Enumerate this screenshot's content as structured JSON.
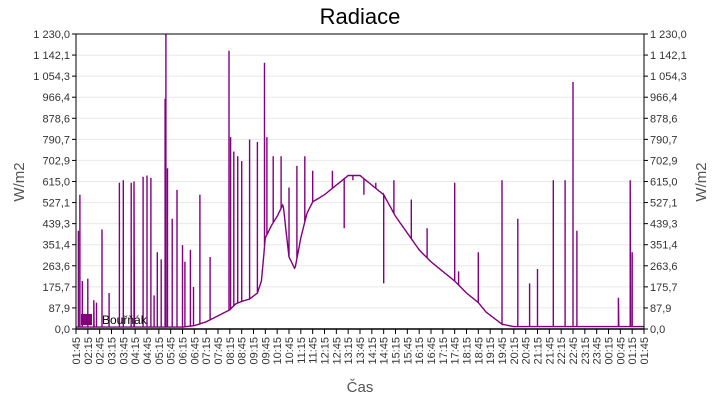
{
  "chart_data": {
    "type": "line",
    "title": "Radiace",
    "xlabel": "Čas",
    "ylabel": "W/m2",
    "ylabel_right": "W/m2",
    "ylim": [
      0,
      1230
    ],
    "yticks": [
      "0,0",
      "87,9",
      "175,7",
      "263,6",
      "351,4",
      "439,3",
      "527,1",
      "615,0",
      "702,9",
      "790,7",
      "878,6",
      "966,4",
      "1 054,3",
      "1 142,1",
      "1 230,0"
    ],
    "xticks": [
      "01:45",
      "02:15",
      "02:45",
      "03:15",
      "03:45",
      "04:15",
      "04:45",
      "05:15",
      "05:45",
      "06:15",
      "06:45",
      "07:15",
      "07:45",
      "08:15",
      "08:45",
      "09:15",
      "09:45",
      "10:15",
      "10:45",
      "11:15",
      "11:45",
      "12:15",
      "12:45",
      "13:15",
      "13:45",
      "14:15",
      "14:45",
      "15:15",
      "15:45",
      "16:15",
      "16:45",
      "17:15",
      "17:45",
      "18:15",
      "18:45",
      "19:15",
      "19:45",
      "20:15",
      "20:45",
      "21:15",
      "21:45",
      "22:15",
      "22:45",
      "23:15",
      "23:45",
      "00:15",
      "00:45",
      "01:15",
      "01:45"
    ],
    "grid": true,
    "legend": {
      "position": "inside-bottom-left",
      "entries": [
        "Bouřňák"
      ]
    },
    "series": [
      {
        "name": "Bouřňák",
        "color": "#800080",
        "x_unit": "minutes since 01:45",
        "baseline": [
          [
            0,
            8
          ],
          [
            270,
            8
          ],
          [
            300,
            14
          ],
          [
            330,
            30
          ],
          [
            360,
            55
          ],
          [
            390,
            80
          ],
          [
            405,
            105
          ],
          [
            420,
            115
          ],
          [
            440,
            125
          ],
          [
            460,
            150
          ],
          [
            470,
            200
          ],
          [
            480,
            380
          ],
          [
            495,
            430
          ],
          [
            510,
            470
          ],
          [
            525,
            520
          ],
          [
            540,
            300
          ],
          [
            555,
            250
          ],
          [
            570,
            380
          ],
          [
            585,
            480
          ],
          [
            600,
            530
          ],
          [
            630,
            560
          ],
          [
            660,
            600
          ],
          [
            690,
            640
          ],
          [
            720,
            640
          ],
          [
            750,
            600
          ],
          [
            780,
            560
          ],
          [
            810,
            470
          ],
          [
            840,
            400
          ],
          [
            870,
            330
          ],
          [
            900,
            280
          ],
          [
            930,
            240
          ],
          [
            960,
            200
          ],
          [
            990,
            150
          ],
          [
            1020,
            110
          ],
          [
            1040,
            70
          ],
          [
            1060,
            45
          ],
          [
            1080,
            20
          ],
          [
            1110,
            10
          ],
          [
            1440,
            10
          ]
        ],
        "spikes": [
          [
            6,
            410
          ],
          [
            10,
            560
          ],
          [
            16,
            200
          ],
          [
            30,
            210
          ],
          [
            45,
            120
          ],
          [
            52,
            110
          ],
          [
            66,
            415
          ],
          [
            84,
            150
          ],
          [
            110,
            610
          ],
          [
            120,
            620
          ],
          [
            140,
            610
          ],
          [
            147,
            615
          ],
          [
            170,
            635
          ],
          [
            180,
            640
          ],
          [
            190,
            630
          ],
          [
            198,
            140
          ],
          [
            206,
            320
          ],
          [
            216,
            290
          ],
          [
            226,
            960
          ],
          [
            228,
            1230
          ],
          [
            232,
            670
          ],
          [
            244,
            460
          ],
          [
            256,
            580
          ],
          [
            270,
            350
          ],
          [
            276,
            280
          ],
          [
            290,
            330
          ],
          [
            298,
            175
          ],
          [
            314,
            560
          ],
          [
            340,
            300
          ],
          [
            388,
            1160
          ],
          [
            392,
            800
          ],
          [
            400,
            740
          ],
          [
            410,
            720
          ],
          [
            420,
            700
          ],
          [
            440,
            790
          ],
          [
            460,
            780
          ],
          [
            478,
            1110
          ],
          [
            484,
            800
          ],
          [
            500,
            720
          ],
          [
            520,
            720
          ],
          [
            540,
            590
          ],
          [
            560,
            680
          ],
          [
            580,
            720
          ],
          [
            600,
            660
          ],
          [
            650,
            660
          ],
          [
            680,
            420
          ],
          [
            702,
            620
          ],
          [
            730,
            560
          ],
          [
            760,
            610
          ],
          [
            780,
            190
          ],
          [
            806,
            620
          ],
          [
            850,
            540
          ],
          [
            890,
            420
          ],
          [
            960,
            610
          ],
          [
            970,
            240
          ],
          [
            1020,
            320
          ],
          [
            1080,
            620
          ],
          [
            1120,
            460
          ],
          [
            1150,
            190
          ],
          [
            1170,
            250
          ],
          [
            1210,
            620
          ],
          [
            1240,
            620
          ],
          [
            1260,
            1030
          ],
          [
            1270,
            410
          ],
          [
            1375,
            130
          ],
          [
            1405,
            620
          ],
          [
            1410,
            320
          ]
        ]
      }
    ]
  }
}
